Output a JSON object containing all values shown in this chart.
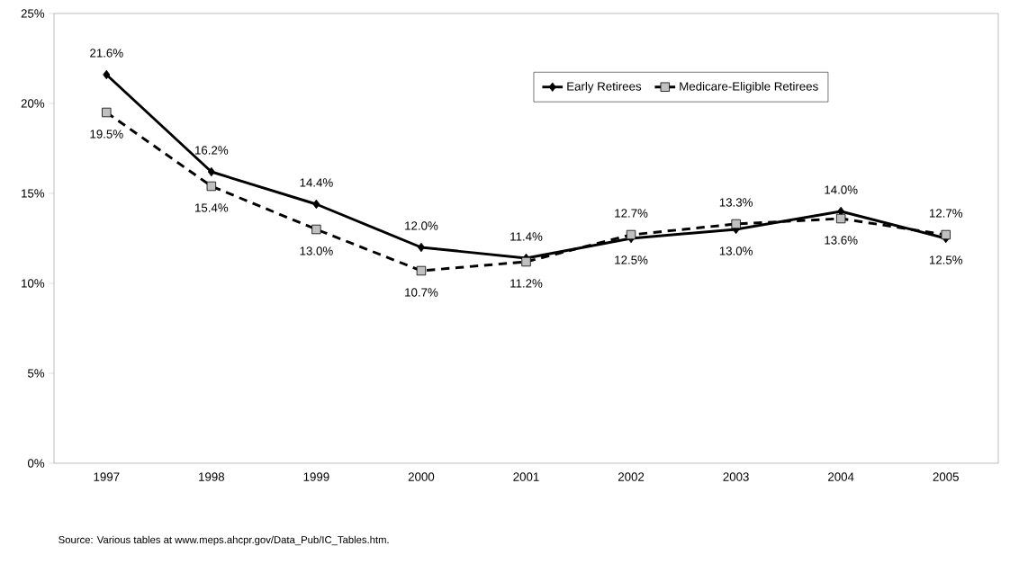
{
  "chart_data": {
    "type": "line",
    "categories": [
      "1997",
      "1998",
      "1999",
      "2000",
      "2001",
      "2002",
      "2003",
      "2004",
      "2005"
    ],
    "series": [
      {
        "name": "Early Retirees",
        "color": "#000000",
        "marker": "diamond",
        "line_style": "solid",
        "values": [
          21.6,
          16.2,
          14.4,
          12.0,
          11.4,
          12.5,
          13.0,
          14.0,
          12.5
        ],
        "value_labels": [
          "21.6%",
          "16.2%",
          "14.4%",
          "12.0%",
          "11.4%",
          "12.5%",
          "13.0%",
          "14.0%",
          "12.5%"
        ]
      },
      {
        "name": "Medicare-Eligible Retirees",
        "color": "#000000",
        "marker": "square",
        "line_style": "dashed",
        "values": [
          19.5,
          15.4,
          13.0,
          10.7,
          11.2,
          12.7,
          13.3,
          13.6,
          12.7
        ],
        "value_labels": [
          "19.5%",
          "15.4%",
          "13.0%",
          "10.7%",
          "11.2%",
          "12.7%",
          "13.3%",
          "13.6%",
          "12.7%"
        ]
      }
    ],
    "ylim": [
      0,
      25
    ],
    "yticks": [
      {
        "value": 0,
        "label": "0%"
      },
      {
        "value": 5,
        "label": "5%"
      },
      {
        "value": 10,
        "label": "10%"
      },
      {
        "value": 15,
        "label": "15%"
      },
      {
        "value": 20,
        "label": "20%"
      },
      {
        "value": 25,
        "label": "25%"
      }
    ],
    "legend": "top right",
    "grid": false,
    "annotations": [
      "Source: Various tables at www.meps.ahcpr.gov/Data_Pub/IC_Tables.htm."
    ]
  }
}
